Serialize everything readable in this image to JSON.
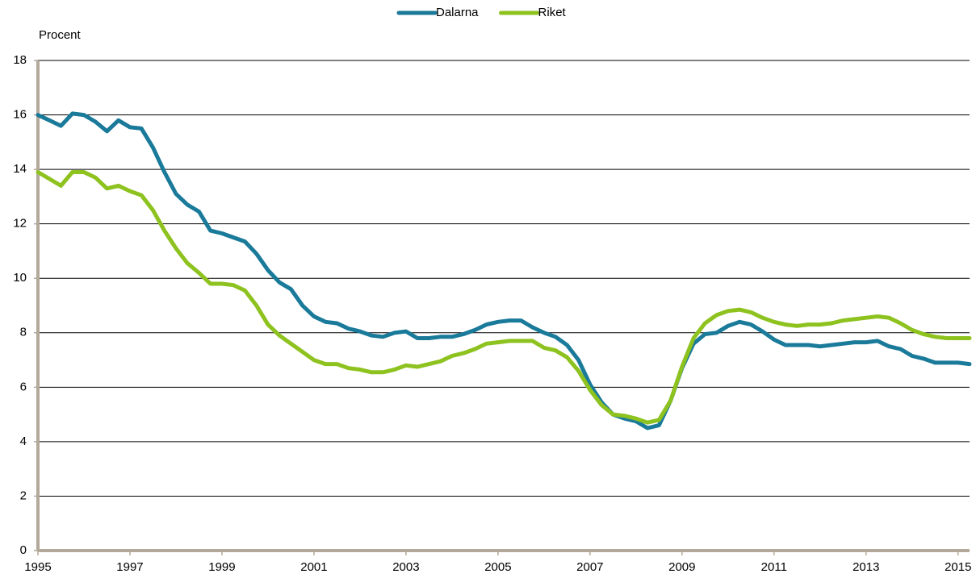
{
  "chart_data": {
    "type": "line",
    "y_label": "Procent",
    "x": [
      1995,
      1995.25,
      1995.5,
      1995.75,
      1996,
      1996.25,
      1996.5,
      1996.75,
      1997,
      1997.25,
      1997.5,
      1997.75,
      1998,
      1998.25,
      1998.5,
      1998.75,
      1999,
      1999.25,
      1999.5,
      1999.75,
      2000,
      2000.25,
      2000.5,
      2000.75,
      2001,
      2001.25,
      2001.5,
      2001.75,
      2002,
      2002.25,
      2002.5,
      2002.75,
      2003,
      2003.25,
      2003.5,
      2003.75,
      2004,
      2004.25,
      2004.5,
      2004.75,
      2005,
      2005.25,
      2005.5,
      2005.75,
      2006,
      2006.25,
      2006.5,
      2006.75,
      2007,
      2007.25,
      2007.5,
      2007.75,
      2008,
      2008.25,
      2008.5,
      2008.75,
      2009,
      2009.25,
      2009.5,
      2009.75,
      2010,
      2010.25,
      2010.5,
      2010.75,
      2011,
      2011.25,
      2011.5,
      2011.75,
      2012,
      2012.25,
      2012.5,
      2012.75,
      2013,
      2013.25,
      2013.5,
      2013.75,
      2014,
      2014.25,
      2014.5,
      2014.75,
      2015,
      2015.25
    ],
    "series": [
      {
        "name": "Dalarna",
        "color": "#1a7a9a",
        "values": [
          16.0,
          15.8,
          15.6,
          16.05,
          16.0,
          15.75,
          15.4,
          15.8,
          15.55,
          15.5,
          14.8,
          13.9,
          13.1,
          12.7,
          12.45,
          11.75,
          11.65,
          11.5,
          11.35,
          10.9,
          10.3,
          9.85,
          9.6,
          9.0,
          8.6,
          8.4,
          8.35,
          8.15,
          8.05,
          7.9,
          7.85,
          8.0,
          8.05,
          7.8,
          7.8,
          7.85,
          7.85,
          7.95,
          8.1,
          8.3,
          8.4,
          8.45,
          8.45,
          8.2,
          8.0,
          7.85,
          7.55,
          7.0,
          6.1,
          5.45,
          5.0,
          4.85,
          4.75,
          4.5,
          4.6,
          5.5,
          6.7,
          7.6,
          7.95,
          8.0,
          8.25,
          8.4,
          8.3,
          8.05,
          7.75,
          7.55,
          7.55,
          7.55,
          7.5,
          7.55,
          7.6,
          7.65,
          7.65,
          7.7,
          7.5,
          7.4,
          7.15,
          7.05,
          6.9,
          6.9,
          6.9,
          6.85
        ]
      },
      {
        "name": "Riket",
        "color": "#8dc21f",
        "values": [
          13.9,
          13.65,
          13.4,
          13.9,
          13.9,
          13.7,
          13.3,
          13.4,
          13.2,
          13.05,
          12.5,
          11.75,
          11.1,
          10.55,
          10.2,
          9.8,
          9.8,
          9.75,
          9.55,
          9.0,
          8.3,
          7.9,
          7.6,
          7.3,
          7.0,
          6.85,
          6.85,
          6.7,
          6.65,
          6.55,
          6.55,
          6.65,
          6.8,
          6.75,
          6.85,
          6.95,
          7.15,
          7.25,
          7.4,
          7.6,
          7.65,
          7.7,
          7.7,
          7.7,
          7.45,
          7.35,
          7.1,
          6.6,
          5.9,
          5.35,
          5.0,
          4.95,
          4.85,
          4.7,
          4.8,
          5.5,
          6.75,
          7.8,
          8.35,
          8.65,
          8.8,
          8.85,
          8.75,
          8.55,
          8.4,
          8.3,
          8.25,
          8.3,
          8.3,
          8.35,
          8.45,
          8.5,
          8.55,
          8.6,
          8.55,
          8.35,
          8.1,
          7.95,
          7.85,
          7.8,
          7.8,
          7.8
        ]
      }
    ],
    "xlim": [
      1995,
      2015.25
    ],
    "xticks": [
      1995,
      1997,
      1999,
      2001,
      2003,
      2005,
      2007,
      2009,
      2011,
      2013,
      2015
    ],
    "ylim": [
      0,
      18
    ],
    "yticks": [
      0,
      2,
      4,
      6,
      8,
      10,
      12,
      14,
      16,
      18
    ],
    "grid": true,
    "legend": "top"
  }
}
